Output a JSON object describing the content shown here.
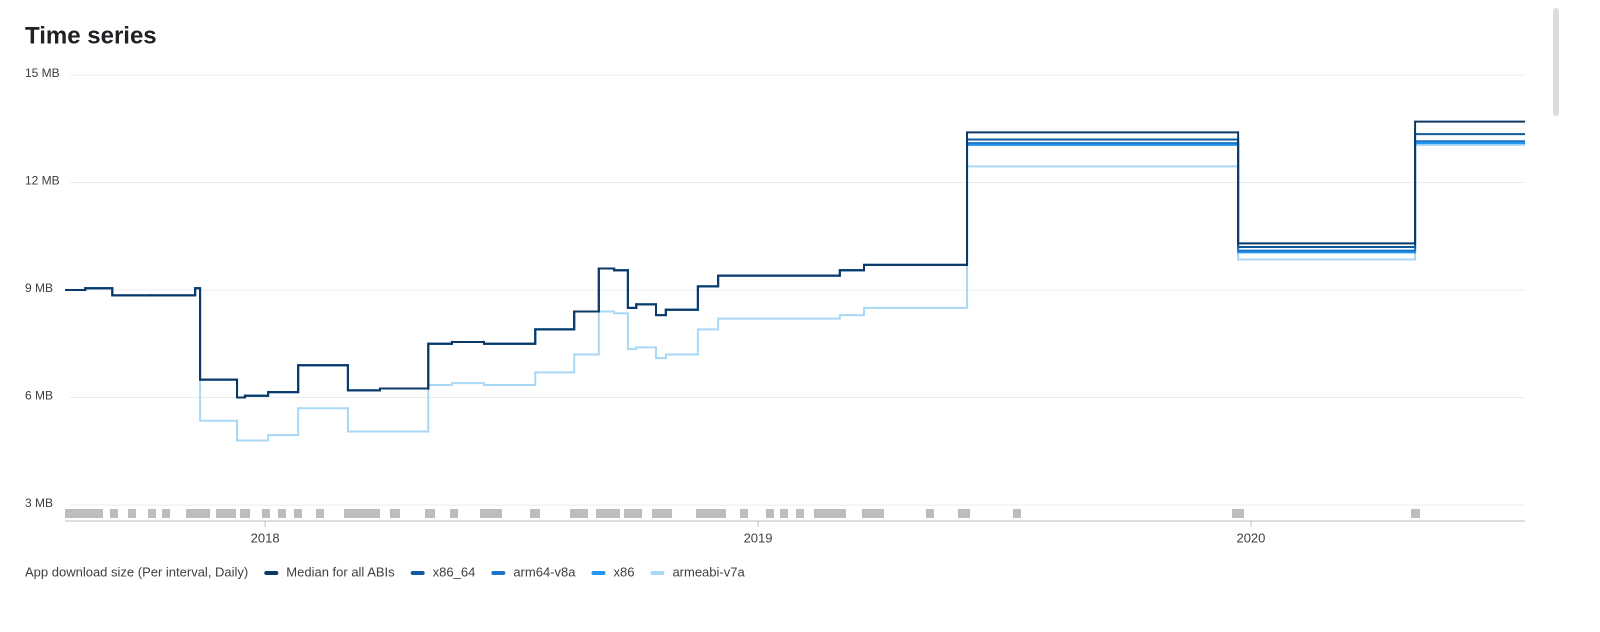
{
  "chart_data": {
    "type": "step-line",
    "title": "Time series",
    "legend_title": "App download size (Per interval, Daily)",
    "x": [
      2017.594,
      2017.635,
      2017.69,
      2017.767,
      2017.858,
      2017.868,
      2017.943,
      2017.959,
      2018.006,
      2018.067,
      2018.168,
      2018.233,
      2018.331,
      2018.379,
      2018.444,
      2018.548,
      2018.627,
      2018.677,
      2018.708,
      2018.736,
      2018.753,
      2018.793,
      2018.813,
      2018.878,
      2018.919,
      2019.166,
      2019.215,
      2019.424,
      2019.974,
      2020.333
    ],
    "xlim": [
      2017.594,
      2020.556
    ],
    "xticks": [
      2018,
      2019,
      2020
    ],
    "ylim": [
      3,
      15
    ],
    "yticks": [
      {
        "value": 3,
        "label": "3 MB"
      },
      {
        "value": 6,
        "label": "6 MB"
      },
      {
        "value": 9,
        "label": "9 MB"
      },
      {
        "value": 12,
        "label": "12 MB"
      },
      {
        "value": 15,
        "label": "15 MB"
      }
    ],
    "grid": true,
    "series": [
      {
        "name": "Median for all ABIs",
        "color": "#0b3a66",
        "values": [
          9.0,
          9.05,
          8.85,
          8.85,
          9.05,
          6.5,
          6.0,
          6.05,
          6.15,
          6.9,
          6.2,
          6.25,
          7.5,
          7.55,
          7.5,
          7.9,
          8.4,
          9.6,
          9.55,
          8.5,
          8.6,
          8.3,
          8.45,
          9.1,
          9.4,
          9.55,
          9.7,
          13.4,
          10.3,
          13.7
        ]
      },
      {
        "name": "x86_64",
        "color": "#125a9e",
        "values": [
          9.0,
          9.05,
          8.85,
          8.85,
          9.05,
          6.5,
          6.0,
          6.05,
          6.15,
          6.9,
          6.2,
          6.25,
          7.5,
          7.55,
          7.5,
          7.9,
          8.4,
          9.6,
          9.55,
          8.5,
          8.6,
          8.3,
          8.45,
          9.1,
          9.4,
          9.55,
          9.7,
          13.2,
          10.2,
          13.35
        ]
      },
      {
        "name": "arm64-v8a",
        "color": "#1a75c9",
        "values": [
          9.0,
          9.05,
          8.85,
          8.85,
          9.05,
          6.5,
          6.0,
          6.05,
          6.15,
          6.9,
          6.2,
          6.25,
          7.5,
          7.55,
          7.5,
          7.9,
          8.4,
          9.6,
          9.55,
          8.5,
          8.6,
          8.3,
          8.45,
          9.1,
          9.4,
          9.55,
          9.7,
          13.1,
          10.1,
          13.15
        ]
      },
      {
        "name": "x86",
        "color": "#2196f3",
        "values": [
          9.0,
          9.05,
          8.85,
          8.85,
          9.05,
          6.5,
          6.0,
          6.05,
          6.15,
          6.9,
          6.2,
          6.25,
          7.5,
          7.55,
          7.5,
          7.9,
          8.4,
          9.6,
          9.55,
          8.5,
          8.6,
          8.3,
          8.45,
          9.1,
          9.4,
          9.55,
          9.7,
          13.05,
          10.05,
          13.1
        ]
      },
      {
        "name": "armeabi-v7a",
        "color": "#a9d8f6",
        "values": [
          9.0,
          9.05,
          8.85,
          8.85,
          9.05,
          5.35,
          4.8,
          4.8,
          4.95,
          5.7,
          5.05,
          5.05,
          6.35,
          6.4,
          6.35,
          6.7,
          7.2,
          8.4,
          8.35,
          7.35,
          7.4,
          7.1,
          7.2,
          7.9,
          8.2,
          8.3,
          8.5,
          12.45,
          9.85,
          13.05
        ]
      }
    ]
  }
}
